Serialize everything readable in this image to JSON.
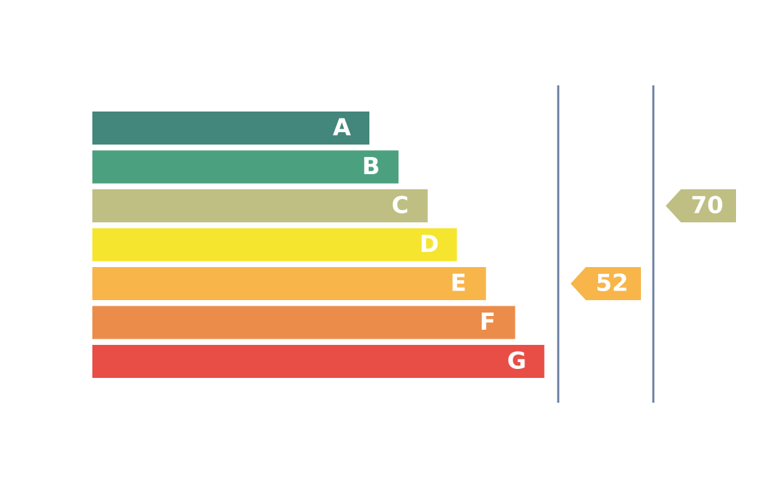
{
  "chart_data": {
    "type": "bar",
    "title": "",
    "categories": [
      "A",
      "B",
      "C",
      "D",
      "E",
      "F",
      "G"
    ],
    "colors": [
      "#43867b",
      "#4ba17f",
      "#bfbf84",
      "#f6e52f",
      "#f8b54a",
      "#ec8c4a",
      "#e84e46"
    ],
    "divider_color": "#6b7fa3",
    "indicators": [
      {
        "value": "52",
        "rating": "E",
        "color": "#f8b54a"
      },
      {
        "value": "70",
        "rating": "C",
        "color": "#bfbf84"
      }
    ]
  }
}
